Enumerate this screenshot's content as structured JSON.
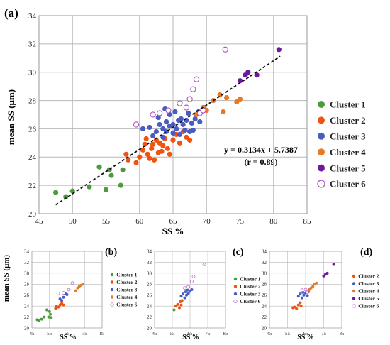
{
  "panel_labels": [
    "(a)",
    "(b)",
    "(c)",
    "(d)"
  ],
  "colors": {
    "Cluster 1": "#4d9a3f",
    "Cluster 2": "#f0520f",
    "Cluster 3": "#4a5cc2",
    "Cluster 4": "#e87a24",
    "Cluster 5": "#6a1a9a",
    "Cluster 6": "#b34fc9"
  },
  "chart_data": [
    {
      "panel": "(a)",
      "type": "scatter",
      "xlabel": "SS %",
      "ylabel": "mean SS (μm)",
      "xlim": [
        45,
        85
      ],
      "ylim": [
        20,
        34
      ],
      "xticks": [
        "45",
        "50",
        "55",
        "60",
        "65",
        "70",
        "75",
        "80",
        "85"
      ],
      "yticks": [
        "20",
        "22",
        "24",
        "26",
        "28",
        "30",
        "32",
        "34"
      ],
      "grid": true,
      "legend_position": "right",
      "trendline": {
        "slope": 0.3134,
        "intercept": 5.7387,
        "x_range": [
          47.5,
          81
        ],
        "style": "dashed"
      },
      "annotation": {
        "equation": "y = 0.3134x + 5.7387",
        "r": "(r = 0.89)"
      },
      "series": [
        {
          "name": "Cluster 1",
          "marker": "filled",
          "points": [
            [
              47.5,
              21.5
            ],
            [
              49,
              21.2
            ],
            [
              50,
              21.6
            ],
            [
              52.5,
              21.9
            ],
            [
              54,
              23.3
            ],
            [
              55,
              21.7
            ],
            [
              55.5,
              23.1
            ],
            [
              55.8,
              22.7
            ],
            [
              57.2,
              22.0
            ],
            [
              57.5,
              23.1
            ]
          ]
        },
        {
          "name": "Cluster 2",
          "marker": "filled",
          "points": [
            [
              58,
              24.2
            ],
            [
              58.3,
              23.8
            ],
            [
              59.5,
              23.6
            ],
            [
              60,
              24.0
            ],
            [
              60.5,
              24.5
            ],
            [
              60.8,
              24.9
            ],
            [
              61,
              25.3
            ],
            [
              61.2,
              24.2
            ],
            [
              61.5,
              23.9
            ],
            [
              61.8,
              24.6
            ],
            [
              62,
              24.9
            ],
            [
              62.2,
              23.8
            ],
            [
              62.5,
              25.2
            ],
            [
              62.8,
              24.3
            ],
            [
              63,
              25.0
            ],
            [
              63.3,
              24.4
            ],
            [
              63.5,
              24.8
            ],
            [
              63.8,
              25.3
            ],
            [
              64.2,
              24.6
            ],
            [
              64.5,
              24.2
            ],
            [
              65,
              25.2
            ],
            [
              65.5,
              25.6
            ],
            [
              66,
              25.0
            ],
            [
              66.5,
              25.8
            ],
            [
              67,
              25.4
            ],
            [
              67.5,
              25.2
            ]
          ]
        },
        {
          "name": "Cluster 3",
          "marker": "filled",
          "points": [
            [
              60.5,
              26.0
            ],
            [
              61.5,
              26.1
            ],
            [
              62,
              25.5
            ],
            [
              62.5,
              25.8
            ],
            [
              63,
              26.3
            ],
            [
              63.5,
              26.0
            ],
            [
              63.5,
              25.4
            ],
            [
              64,
              26.5
            ],
            [
              64,
              25.8
            ],
            [
              64.5,
              26.2
            ],
            [
              64.5,
              27.0
            ],
            [
              65,
              25.7
            ],
            [
              65,
              26.3
            ],
            [
              65.3,
              27.2
            ],
            [
              65.5,
              26.0
            ],
            [
              65.8,
              26.6
            ],
            [
              66,
              25.6
            ],
            [
              66.2,
              26.7
            ],
            [
              66.5,
              26.3
            ],
            [
              66.8,
              25.9
            ],
            [
              67,
              26.6
            ],
            [
              67.3,
              27.1
            ],
            [
              67.5,
              25.8
            ],
            [
              67.8,
              26.4
            ],
            [
              68,
              25.9
            ],
            [
              68.3,
              26.7
            ],
            [
              68.8,
              27.2
            ],
            [
              69,
              26.5
            ],
            [
              63.8,
              27.4
            ],
            [
              62.8,
              26.8
            ]
          ]
        },
        {
          "name": "Cluster 4",
          "marker": "filled",
          "points": [
            [
              68.5,
              27.0
            ],
            [
              69.5,
              27.5
            ],
            [
              70,
              27.3
            ],
            [
              71,
              28.0
            ],
            [
              72,
              28.4
            ],
            [
              72.5,
              27.2
            ],
            [
              73,
              28.2
            ],
            [
              74.5,
              27.9
            ],
            [
              75,
              28.1
            ]
          ]
        },
        {
          "name": "Cluster 5",
          "marker": "filled",
          "points": [
            [
              75,
              29.4
            ],
            [
              75.8,
              29.8
            ],
            [
              76.2,
              30.0
            ],
            [
              77.5,
              29.8
            ],
            [
              80.8,
              31.6
            ]
          ]
        },
        {
          "name": "Cluster 6",
          "marker": "open",
          "points": [
            [
              59.5,
              26.3
            ],
            [
              62,
              27.0
            ],
            [
              63,
              27.1
            ],
            [
              64.3,
              27.3
            ],
            [
              66,
              27.8
            ],
            [
              67,
              27.5
            ],
            [
              67.5,
              28.1
            ],
            [
              68,
              28.8
            ],
            [
              68.5,
              29.5
            ],
            [
              69,
              27.1
            ],
            [
              69.5,
              27.3
            ],
            [
              72.8,
              31.6
            ]
          ]
        }
      ]
    },
    {
      "panel": "(b)",
      "type": "scatter",
      "xlabel": "SS %",
      "ylabel": "mean SS (μm)",
      "xlim": [
        45,
        85
      ],
      "ylim": [
        20,
        34
      ],
      "xticks": [
        "45",
        "55",
        "65",
        "75",
        "85"
      ],
      "yticks": [
        "20",
        "22",
        "24",
        "26",
        "28",
        "30",
        "32",
        "34"
      ],
      "grid": true,
      "legend_position": "right",
      "series": [
        {
          "name": "Cluster 1",
          "marker": "filled",
          "points": [
            [
              48,
              21.5
            ],
            [
              49,
              21.3
            ],
            [
              50.5,
              21.6
            ],
            [
              52,
              22.0
            ],
            [
              53.5,
              23.3
            ],
            [
              54.5,
              22.0
            ],
            [
              55,
              23.0
            ],
            [
              55.5,
              22.5
            ],
            [
              56,
              21.9
            ]
          ]
        },
        {
          "name": "Cluster 2",
          "marker": "filled",
          "points": [
            [
              58.5,
              23.6
            ],
            [
              59,
              24.0
            ],
            [
              60,
              23.8
            ],
            [
              61,
              24.2
            ],
            [
              62,
              24.5
            ],
            [
              63,
              24.2
            ]
          ]
        },
        {
          "name": "Cluster 3",
          "marker": "filled",
          "points": [
            [
              61,
              25.3
            ],
            [
              62,
              25.0
            ],
            [
              63,
              25.6
            ],
            [
              64,
              26.3
            ],
            [
              65,
              26.1
            ]
          ]
        },
        {
          "name": "Cluster 4",
          "marker": "filled",
          "points": [
            [
              70,
              26.8
            ],
            [
              71,
              27.3
            ],
            [
              72,
              27.6
            ],
            [
              73,
              27.8
            ],
            [
              74,
              28.0
            ]
          ]
        },
        {
          "name": "Cluster 6",
          "marker": "open",
          "points": [
            [
              60,
              26.3
            ],
            [
              63,
              26.4
            ],
            [
              66,
              27.0
            ],
            [
              68,
              28.2
            ]
          ]
        }
      ]
    },
    {
      "panel": "(c)",
      "type": "scatter",
      "xlabel": "SS %",
      "ylabel": "",
      "xlim": [
        45,
        85
      ],
      "ylim": [
        20,
        34
      ],
      "xticks": [
        "45",
        "55",
        "65",
        "75",
        "85"
      ],
      "yticks": [
        "20",
        "22",
        "24",
        "26",
        "28",
        "30",
        "32",
        "34"
      ],
      "grid": true,
      "legend_position": "right",
      "series": [
        {
          "name": "Cluster 1",
          "marker": "filled",
          "points": [
            [
              56,
              23.3
            ]
          ]
        },
        {
          "name": "Cluster 2",
          "marker": "filled",
          "points": [
            [
              57,
              24.0
            ],
            [
              58,
              24.3
            ],
            [
              59,
              23.7
            ],
            [
              59.5,
              24.8
            ],
            [
              60,
              24.2
            ],
            [
              60.5,
              25.0
            ]
          ]
        },
        {
          "name": "Cluster 3",
          "marker": "filled",
          "points": [
            [
              60,
              25.8
            ],
            [
              61,
              26.2
            ],
            [
              62,
              25.5
            ],
            [
              62.5,
              26.6
            ],
            [
              63,
              26.0
            ],
            [
              63.5,
              26.9
            ],
            [
              64,
              26.3
            ],
            [
              65,
              26.7
            ],
            [
              66,
              27.0
            ]
          ]
        },
        {
          "name": "Cluster 6",
          "marker": "open",
          "points": [
            [
              62,
              27.3
            ],
            [
              64,
              27.5
            ],
            [
              66,
              28.5
            ],
            [
              67,
              29.4
            ],
            [
              73,
              31.6
            ]
          ]
        }
      ]
    },
    {
      "panel": "(d)",
      "type": "scatter",
      "xlabel": "SS %",
      "ylabel": "",
      "xlim": [
        45,
        85
      ],
      "ylim": [
        20,
        34
      ],
      "xticks": [
        "45",
        "55",
        "65",
        "75",
        "85"
      ],
      "yticks": [
        "20",
        "22",
        "24",
        "26",
        "28",
        "30",
        "32",
        "34"
      ],
      "grid": true,
      "legend_position": "right",
      "series": [
        {
          "name": "Cluster 2",
          "marker": "filled",
          "points": [
            [
              58,
              23.7
            ],
            [
              59,
              23.8
            ],
            [
              60,
              23.5
            ],
            [
              61,
              24.2
            ],
            [
              62,
              24.6
            ],
            [
              62.5,
              24.0
            ]
          ]
        },
        {
          "name": "Cluster 3",
          "marker": "filled",
          "points": [
            [
              61,
              25.8
            ],
            [
              62,
              26.2
            ],
            [
              63,
              25.5
            ],
            [
              63.5,
              26.5
            ],
            [
              64,
              26.0
            ],
            [
              65,
              26.4
            ],
            [
              66,
              25.9
            ],
            [
              66.5,
              26.6
            ]
          ]
        },
        {
          "name": "Cluster 4",
          "marker": "filled",
          "points": [
            [
              67,
              27.0
            ],
            [
              68,
              27.3
            ],
            [
              69,
              27.6
            ],
            [
              70,
              28.0
            ],
            [
              71,
              28.2
            ]
          ]
        },
        {
          "name": "Cluster 5",
          "marker": "filled",
          "points": [
            [
              75,
              29.5
            ],
            [
              76,
              29.8
            ],
            [
              77,
              30.0
            ],
            [
              80.5,
              31.6
            ]
          ]
        },
        {
          "name": "Cluster 6",
          "marker": "open",
          "points": [
            [
              63,
              26.9
            ],
            [
              65,
              27.0
            ],
            [
              66,
              26.5
            ]
          ]
        }
      ]
    }
  ]
}
